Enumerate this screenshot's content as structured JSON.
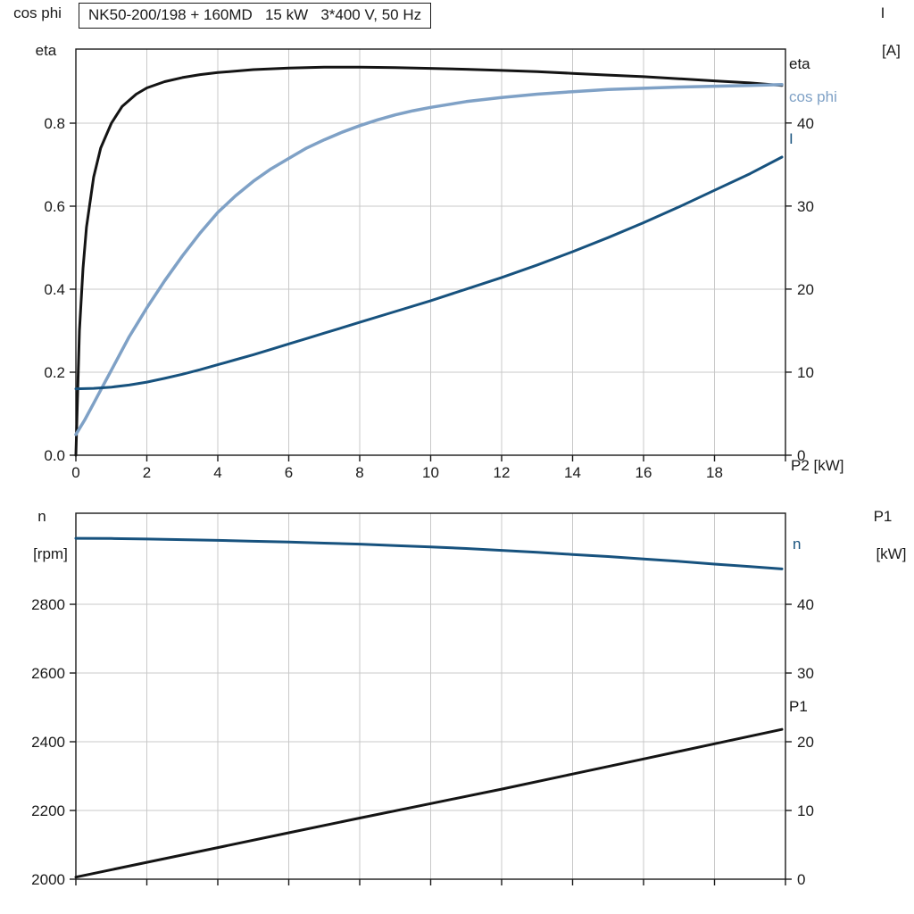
{
  "colors": {
    "black": "#141414",
    "steel_blue": "#7fa1c6",
    "dark_blue": "#17527e",
    "grid": "#c9c9c9",
    "axis": "#1a1a1a"
  },
  "chart_data": [
    {
      "type": "line",
      "title": "NK50-200/198 + 160MD   15 kW   3*400 V, 50 Hz",
      "xlabel": "P2 [kW]",
      "grid": true,
      "x_axis": {
        "range": [
          0,
          20
        ],
        "ticks": [
          {
            "v": 0,
            "label": "0"
          },
          {
            "v": 2,
            "label": "2"
          },
          {
            "v": 4,
            "label": "4"
          },
          {
            "v": 6,
            "label": "6"
          },
          {
            "v": 8,
            "label": "8"
          },
          {
            "v": 10,
            "label": "10"
          },
          {
            "v": 12,
            "label": "12"
          },
          {
            "v": 14,
            "label": "14"
          },
          {
            "v": 16,
            "label": "16"
          },
          {
            "v": 18,
            "label": "18"
          },
          {
            "v": 20,
            "label": null
          }
        ]
      },
      "left_axis": {
        "label_lines": [
          "cos phi",
          "eta"
        ],
        "range": [
          0,
          0.9785
        ],
        "ticks": [
          {
            "v": 0.0,
            "label": "0.0"
          },
          {
            "v": 0.2,
            "label": "0.2"
          },
          {
            "v": 0.4,
            "label": "0.4"
          },
          {
            "v": 0.6,
            "label": "0.6"
          },
          {
            "v": 0.8,
            "label": "0.8"
          }
        ]
      },
      "right_axis": {
        "label_lines": [
          "I",
          "[A]"
        ],
        "range": [
          0,
          48.9
        ],
        "ticks": [
          {
            "v": 0,
            "label": "0"
          },
          {
            "v": 10,
            "label": "10"
          },
          {
            "v": 20,
            "label": "20"
          },
          {
            "v": 30,
            "label": "30"
          },
          {
            "v": 40,
            "label": "40"
          }
        ]
      },
      "series": [
        {
          "name": "eta",
          "label": "eta",
          "axis": "left",
          "color": "#141414",
          "width": 3,
          "points": [
            [
              0,
              0
            ],
            [
              0.1,
              0.3
            ],
            [
              0.2,
              0.45
            ],
            [
              0.3,
              0.55
            ],
            [
              0.5,
              0.67
            ],
            [
              0.7,
              0.74
            ],
            [
              1.0,
              0.8
            ],
            [
              1.3,
              0.84
            ],
            [
              1.7,
              0.87
            ],
            [
              2,
              0.885
            ],
            [
              2.5,
              0.9
            ],
            [
              3,
              0.91
            ],
            [
              3.5,
              0.917
            ],
            [
              4,
              0.922
            ],
            [
              5,
              0.929
            ],
            [
              6,
              0.933
            ],
            [
              7,
              0.935
            ],
            [
              8,
              0.935
            ],
            [
              9,
              0.934
            ],
            [
              10,
              0.932
            ],
            [
              11,
              0.93
            ],
            [
              12,
              0.927
            ],
            [
              13,
              0.924
            ],
            [
              14,
              0.92
            ],
            [
              15,
              0.916
            ],
            [
              16,
              0.912
            ],
            [
              17,
              0.907
            ],
            [
              18,
              0.902
            ],
            [
              19,
              0.897
            ],
            [
              19.9,
              0.891
            ]
          ]
        },
        {
          "name": "cos_phi",
          "label": "cos phi",
          "axis": "left",
          "color": "#7fa1c6",
          "width": 3.5,
          "points": [
            [
              0,
              0.05
            ],
            [
              0.25,
              0.085
            ],
            [
              0.5,
              0.125
            ],
            [
              0.75,
              0.165
            ],
            [
              1,
              0.205
            ],
            [
              1.25,
              0.245
            ],
            [
              1.5,
              0.285
            ],
            [
              1.75,
              0.32
            ],
            [
              2,
              0.355
            ],
            [
              2.5,
              0.42
            ],
            [
              3,
              0.48
            ],
            [
              3.5,
              0.535
            ],
            [
              4,
              0.585
            ],
            [
              4.5,
              0.625
            ],
            [
              5,
              0.66
            ],
            [
              5.5,
              0.69
            ],
            [
              6,
              0.715
            ],
            [
              6.5,
              0.74
            ],
            [
              7,
              0.76
            ],
            [
              7.5,
              0.778
            ],
            [
              8,
              0.794
            ],
            [
              8.5,
              0.808
            ],
            [
              9,
              0.82
            ],
            [
              9.5,
              0.83
            ],
            [
              10,
              0.838
            ],
            [
              11,
              0.852
            ],
            [
              12,
              0.862
            ],
            [
              13,
              0.87
            ],
            [
              14,
              0.876
            ],
            [
              15,
              0.881
            ],
            [
              16,
              0.884
            ],
            [
              17,
              0.887
            ],
            [
              18,
              0.889
            ],
            [
              19,
              0.891
            ],
            [
              19.9,
              0.893
            ]
          ]
        },
        {
          "name": "I",
          "label": "I",
          "axis": "right",
          "color": "#17527e",
          "width": 3,
          "points": [
            [
              0,
              8.0
            ],
            [
              0.5,
              8.05
            ],
            [
              1,
              8.2
            ],
            [
              1.5,
              8.45
            ],
            [
              2,
              8.8
            ],
            [
              2.5,
              9.25
            ],
            [
              3,
              9.75
            ],
            [
              3.5,
              10.3
            ],
            [
              4,
              10.9
            ],
            [
              4.5,
              11.5
            ],
            [
              5,
              12.1
            ],
            [
              5.5,
              12.75
            ],
            [
              6,
              13.4
            ],
            [
              6.5,
              14.05
            ],
            [
              7,
              14.7
            ],
            [
              7.5,
              15.35
            ],
            [
              8,
              16.0
            ],
            [
              9,
              17.3
            ],
            [
              10,
              18.6
            ],
            [
              11,
              20.0
            ],
            [
              12,
              21.4
            ],
            [
              13,
              22.9
            ],
            [
              14,
              24.5
            ],
            [
              15,
              26.2
            ],
            [
              16,
              28.0
            ],
            [
              17,
              29.9
            ],
            [
              18,
              31.9
            ],
            [
              19,
              33.9
            ],
            [
              19.9,
              35.9
            ]
          ]
        }
      ]
    },
    {
      "type": "line",
      "title": "",
      "xlabel": "",
      "grid": true,
      "x_axis": {
        "range": [
          0,
          20
        ],
        "ticks": [
          {
            "v": 0,
            "label": null
          },
          {
            "v": 2,
            "label": null
          },
          {
            "v": 4,
            "label": null
          },
          {
            "v": 6,
            "label": null
          },
          {
            "v": 8,
            "label": null
          },
          {
            "v": 10,
            "label": null
          },
          {
            "v": 12,
            "label": null
          },
          {
            "v": 14,
            "label": null
          },
          {
            "v": 16,
            "label": null
          },
          {
            "v": 18,
            "label": null
          },
          {
            "v": 20,
            "label": null
          }
        ]
      },
      "left_axis": {
        "label_lines": [
          "n",
          "[rpm]"
        ],
        "range": [
          2000,
          3065
        ],
        "ticks": [
          {
            "v": 2000,
            "label": "2000"
          },
          {
            "v": 2200,
            "label": "2200"
          },
          {
            "v": 2400,
            "label": "2400"
          },
          {
            "v": 2600,
            "label": "2600"
          },
          {
            "v": 2800,
            "label": "2800"
          }
        ]
      },
      "right_axis": {
        "label_lines": [
          "P1",
          "[kW]"
        ],
        "range": [
          0,
          53.25
        ],
        "ticks": [
          {
            "v": 0,
            "label": "0"
          },
          {
            "v": 10,
            "label": "10"
          },
          {
            "v": 20,
            "label": "20"
          },
          {
            "v": 30,
            "label": "30"
          },
          {
            "v": 40,
            "label": "40"
          }
        ]
      },
      "series": [
        {
          "name": "n",
          "label": "n",
          "axis": "left",
          "color": "#17527e",
          "width": 3,
          "points": [
            [
              0,
              2992
            ],
            [
              1,
              2991.5
            ],
            [
              2,
              2990
            ],
            [
              3,
              2988
            ],
            [
              4,
              2986
            ],
            [
              5,
              2983.5
            ],
            [
              6,
              2981
            ],
            [
              7,
              2978
            ],
            [
              8,
              2975
            ],
            [
              9,
              2971
            ],
            [
              10,
              2967
            ],
            [
              11,
              2962.5
            ],
            [
              12,
              2957
            ],
            [
              13,
              2951.5
            ],
            [
              14,
              2945
            ],
            [
              15,
              2939
            ],
            [
              16,
              2932
            ],
            [
              17,
              2925
            ],
            [
              18,
              2917
            ],
            [
              19,
              2910
            ],
            [
              19.9,
              2903
            ]
          ]
        },
        {
          "name": "P1",
          "label": "P1",
          "axis": "right",
          "color": "#141414",
          "width": 3,
          "points": [
            [
              0,
              0.3
            ],
            [
              2,
              2.45
            ],
            [
              4,
              4.6
            ],
            [
              6,
              6.75
            ],
            [
              8,
              8.9
            ],
            [
              10,
              11.0
            ],
            [
              12,
              13.1
            ],
            [
              14,
              15.3
            ],
            [
              16,
              17.5
            ],
            [
              18,
              19.7
            ],
            [
              19.9,
              21.8
            ]
          ]
        }
      ]
    }
  ]
}
